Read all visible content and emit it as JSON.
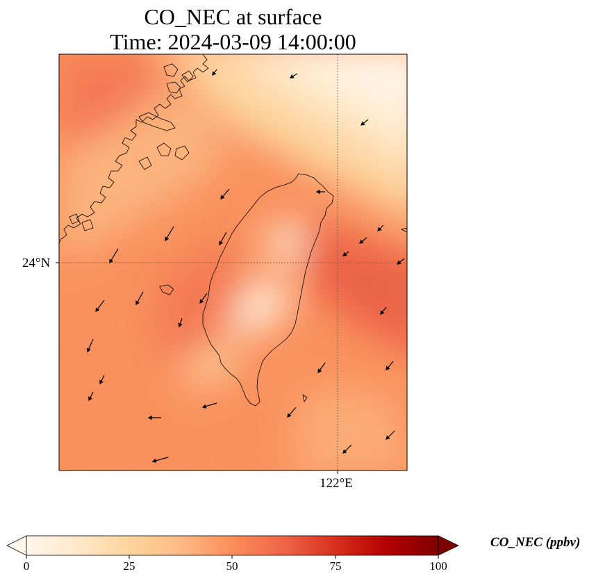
{
  "title_line1": "CO_NEC at surface",
  "title_line2": "Time: 2024-03-09 14:00:00",
  "axes": {
    "lat_label": "24°N",
    "lon_label": "122°E"
  },
  "colorbar": {
    "label": "CO_NEC (ppbv)",
    "colormap": "OrRd",
    "min": 0,
    "max": 100,
    "ticks": [
      "0",
      "25",
      "50",
      "75",
      "100"
    ],
    "extend": "both",
    "colors": [
      "#fff7ec",
      "#fee8c8",
      "#fdd49e",
      "#fdbb84",
      "#fc8d59",
      "#ef6548",
      "#d7301f",
      "#b30000",
      "#7f0000"
    ]
  },
  "map": {
    "background": "#fc8d59",
    "gridlines": "dotted",
    "features": [
      "coastline",
      "wind-vectors"
    ]
  }
}
